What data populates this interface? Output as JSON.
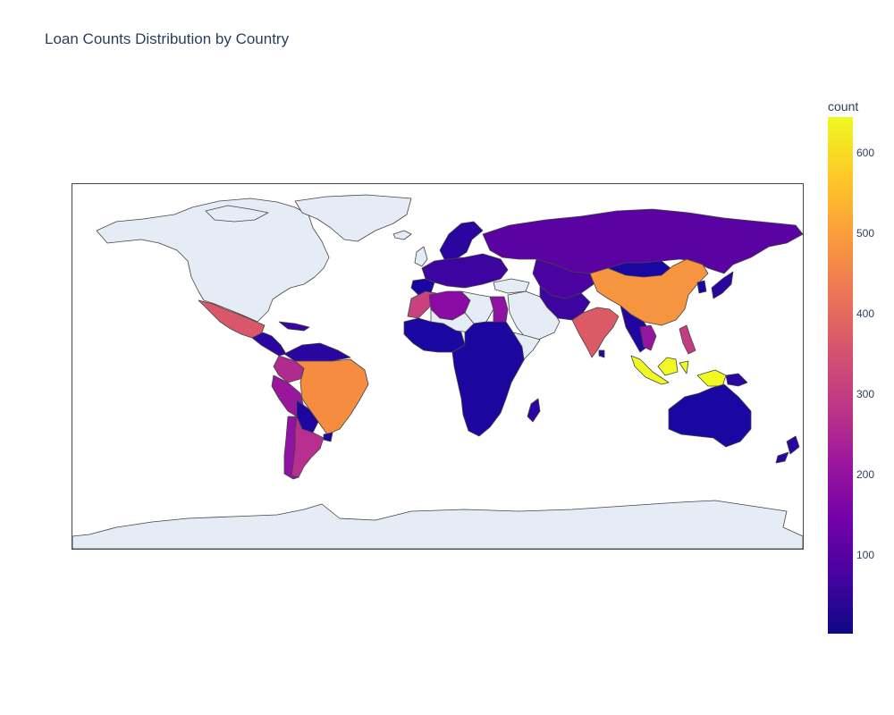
{
  "title": "Loan Counts Distribution by Country",
  "colorbar": {
    "title": "count",
    "ticks": [
      "600",
      "500",
      "400",
      "300",
      "200",
      "100"
    ],
    "tick_values": [
      600,
      500,
      400,
      300,
      200,
      100
    ],
    "min": 1,
    "max": 641,
    "colorscale": [
      "#0d0887",
      "#46039f",
      "#7201a8",
      "#9c179e",
      "#bd3786",
      "#d8576b",
      "#ed7953",
      "#fb9f3a",
      "#fdca26",
      "#f0f921"
    ]
  },
  "colors": {
    "land_no_data": "#e5ecf6",
    "coast": "#444444",
    "text": "#2a3f5f"
  },
  "chart_data": {
    "type": "choropleth",
    "title": "Loan Counts Distribution by Country",
    "projection": "equirectangular",
    "value_label": "count",
    "countries": [
      {
        "name": "Indonesia",
        "value": 640
      },
      {
        "name": "Philippines",
        "value": 620
      },
      {
        "name": "Brazil",
        "value": 480
      },
      {
        "name": "China",
        "value": 480
      },
      {
        "name": "Mexico",
        "value": 380
      },
      {
        "name": "India",
        "value": 380
      },
      {
        "name": "Morocco",
        "value": 330
      },
      {
        "name": "Colombia",
        "value": 280
      },
      {
        "name": "Argentina",
        "value": 260
      },
      {
        "name": "Chile",
        "value": 230
      },
      {
        "name": "Peru",
        "value": 200
      },
      {
        "name": "Cambodia",
        "value": 200
      },
      {
        "name": "Vietnam",
        "value": 160
      },
      {
        "name": "Algeria",
        "value": 150
      },
      {
        "name": "Russia",
        "value": 100
      },
      {
        "name": "Kazakhstan",
        "value": 90
      },
      {
        "name": "Egypt",
        "value": 140
      },
      {
        "name": "Ecuador",
        "value": 150
      },
      {
        "name": "Australia",
        "value": 20
      },
      {
        "name": "Nigeria",
        "value": 60
      },
      {
        "name": "Kenya",
        "value": 20
      },
      {
        "name": "South Africa",
        "value": 20
      }
    ]
  }
}
